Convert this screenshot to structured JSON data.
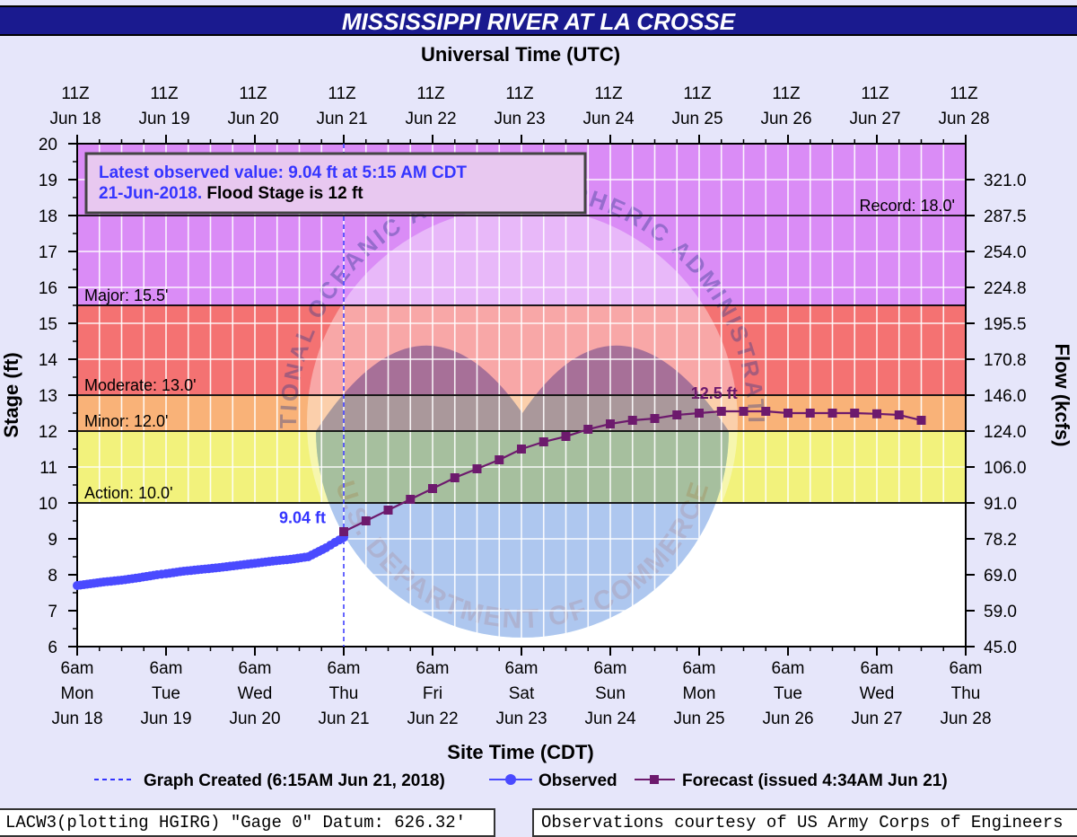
{
  "title": "MISSISSIPPI RIVER AT LA CROSSE",
  "top_axis_title": "Universal Time (UTC)",
  "bottom_axis_title": "Site Time (CDT)",
  "info_box": {
    "line1": "Latest observed value: 9.04 ft at 5:15 AM CDT",
    "line2_date": "21-Jun-2018.",
    "line2_flood": " Flood Stage is 12 ft"
  },
  "legend": {
    "created": "Graph Created (6:15AM Jun 21, 2018)",
    "observed": "Observed",
    "forecast": "Forecast (issued 4:34AM Jun 21)"
  },
  "footer_left": "LACW3(plotting HGIRG) \"Gage 0\" Datum: 626.32'",
  "footer_right": "Observations courtesy of US Army Corps of Engineers",
  "watermark": {
    "top_arc": "NATIONAL OCEANIC AND ATMOSPHERIC ADMINISTRATION",
    "bottom_arc": "U.S. DEPARTMENT OF COMMERCE",
    "logo": "NOAA"
  },
  "colors": {
    "record_band": "#da8cf6",
    "major_band": "#f47272",
    "moderate_band": "#f9b278",
    "minor_band": "#f2f27c",
    "observed": "#4a4aff",
    "forecast": "#6d1a6d",
    "title_bg": "#1a1a8f",
    "page_bg": "#e6e6fa"
  },
  "chart_data": {
    "type": "line",
    "ylabel": "Stage (ft)",
    "y2label": "Flow (kcfs)",
    "ylim": [
      6,
      20
    ],
    "yticks": [
      6,
      7,
      8,
      9,
      10,
      11,
      12,
      13,
      14,
      15,
      16,
      17,
      18,
      19,
      20
    ],
    "y2ticks": [
      {
        "stage": 6,
        "label": "45.0"
      },
      {
        "stage": 7,
        "label": "59.0"
      },
      {
        "stage": 8,
        "label": "69.0"
      },
      {
        "stage": 9,
        "label": "78.2"
      },
      {
        "stage": 10,
        "label": "91.0"
      },
      {
        "stage": 11,
        "label": "106.0"
      },
      {
        "stage": 12,
        "label": "124.0"
      },
      {
        "stage": 13,
        "label": "146.0"
      },
      {
        "stage": 14,
        "label": "170.8"
      },
      {
        "stage": 15,
        "label": "195.5"
      },
      {
        "stage": 16,
        "label": "224.8"
      },
      {
        "stage": 17,
        "label": "254.0"
      },
      {
        "stage": 18,
        "label": "287.5"
      },
      {
        "stage": 19,
        "label": "321.0"
      }
    ],
    "top_ticks": [
      {
        "l1": "11Z",
        "l2": "Jun 18"
      },
      {
        "l1": "11Z",
        "l2": "Jun 19"
      },
      {
        "l1": "11Z",
        "l2": "Jun 20"
      },
      {
        "l1": "11Z",
        "l2": "Jun 21"
      },
      {
        "l1": "11Z",
        "l2": "Jun 22"
      },
      {
        "l1": "11Z",
        "l2": "Jun 23"
      },
      {
        "l1": "11Z",
        "l2": "Jun 24"
      },
      {
        "l1": "11Z",
        "l2": "Jun 25"
      },
      {
        "l1": "11Z",
        "l2": "Jun 26"
      },
      {
        "l1": "11Z",
        "l2": "Jun 27"
      },
      {
        "l1": "11Z",
        "l2": "Jun 28"
      }
    ],
    "bottom_ticks": [
      {
        "l1": "6am",
        "l2": "Mon",
        "l3": "Jun 18"
      },
      {
        "l1": "6am",
        "l2": "Tue",
        "l3": "Jun 19"
      },
      {
        "l1": "6am",
        "l2": "Wed",
        "l3": "Jun 20"
      },
      {
        "l1": "6am",
        "l2": "Thu",
        "l3": "Jun 21"
      },
      {
        "l1": "6am",
        "l2": "Fri",
        "l3": "Jun 22"
      },
      {
        "l1": "6am",
        "l2": "Sat",
        "l3": "Jun 23"
      },
      {
        "l1": "6am",
        "l2": "Sun",
        "l3": "Jun 24"
      },
      {
        "l1": "6am",
        "l2": "Mon",
        "l3": "Jun 25"
      },
      {
        "l1": "6am",
        "l2": "Tue",
        "l3": "Jun 26"
      },
      {
        "l1": "6am",
        "l2": "Wed",
        "l3": "Jun 27"
      },
      {
        "l1": "6am",
        "l2": "Thu",
        "l3": "Jun 28"
      }
    ],
    "grid": true,
    "thresholds": [
      {
        "name": "Record",
        "label": "Record: 18.0'",
        "stage": 18.0
      },
      {
        "name": "Major",
        "label": "Major: 15.5'",
        "stage": 15.5
      },
      {
        "name": "Moderate",
        "label": "Moderate: 13.0'",
        "stage": 13.0
      },
      {
        "name": "Minor",
        "label": "Minor: 12.0'",
        "stage": 12.0
      },
      {
        "name": "Action",
        "label": "Action: 10.0'",
        "stage": 10.0
      }
    ],
    "graph_created_day": 3.0,
    "observed_label": "9.04 ft",
    "forecast_peak_label": "12.5 ft",
    "series": [
      {
        "name": "Observed",
        "x_days": [
          0.0,
          0.15,
          0.3,
          0.5,
          0.7,
          0.9,
          1.0,
          1.2,
          1.4,
          1.6,
          1.8,
          2.0,
          2.2,
          2.4,
          2.6,
          2.8,
          2.9,
          3.0
        ],
        "values": [
          7.7,
          7.75,
          7.8,
          7.85,
          7.92,
          8.0,
          8.03,
          8.1,
          8.15,
          8.2,
          8.26,
          8.32,
          8.38,
          8.43,
          8.5,
          8.75,
          8.9,
          9.04
        ]
      },
      {
        "name": "Forecast",
        "x_days": [
          3.0,
          3.25,
          3.5,
          3.75,
          4.0,
          4.25,
          4.5,
          4.75,
          5.0,
          5.25,
          5.5,
          5.75,
          6.0,
          6.25,
          6.5,
          6.75,
          7.0,
          7.25,
          7.5,
          7.75,
          8.0,
          8.25,
          8.5,
          8.75,
          9.0,
          9.25,
          9.5
        ],
        "values": [
          9.2,
          9.5,
          9.8,
          10.1,
          10.4,
          10.7,
          10.95,
          11.2,
          11.5,
          11.7,
          11.85,
          12.05,
          12.2,
          12.3,
          12.35,
          12.45,
          12.5,
          12.55,
          12.55,
          12.55,
          12.5,
          12.5,
          12.5,
          12.5,
          12.48,
          12.45,
          12.3
        ]
      }
    ]
  }
}
